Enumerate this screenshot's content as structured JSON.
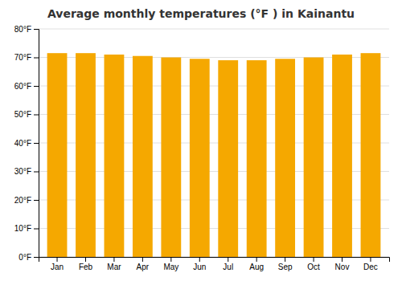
{
  "chart_data": {
    "type": "bar",
    "title": "Average monthly temperatures (°F ) in Kainantu",
    "categories": [
      "Jan",
      "Feb",
      "Mar",
      "Apr",
      "May",
      "Jun",
      "Jul",
      "Aug",
      "Sep",
      "Oct",
      "Nov",
      "Dec"
    ],
    "values": [
      71.5,
      71.5,
      71.0,
      70.5,
      70.0,
      69.5,
      69.0,
      69.0,
      69.5,
      70.0,
      71.0,
      71.5
    ],
    "color": "#F5A800",
    "ylim": [
      0,
      80
    ],
    "yticks": [
      {
        "value": 0,
        "label": "0°F"
      },
      {
        "value": 10,
        "label": "10°F"
      },
      {
        "value": 20,
        "label": "20°F"
      },
      {
        "value": 30,
        "label": "30°F"
      },
      {
        "value": 40,
        "label": "40°F"
      },
      {
        "value": 50,
        "label": "50°F"
      },
      {
        "value": 60,
        "label": "60°F"
      },
      {
        "value": 70,
        "label": "70°F"
      },
      {
        "value": 80,
        "label": "80°F"
      }
    ],
    "grid": true
  }
}
